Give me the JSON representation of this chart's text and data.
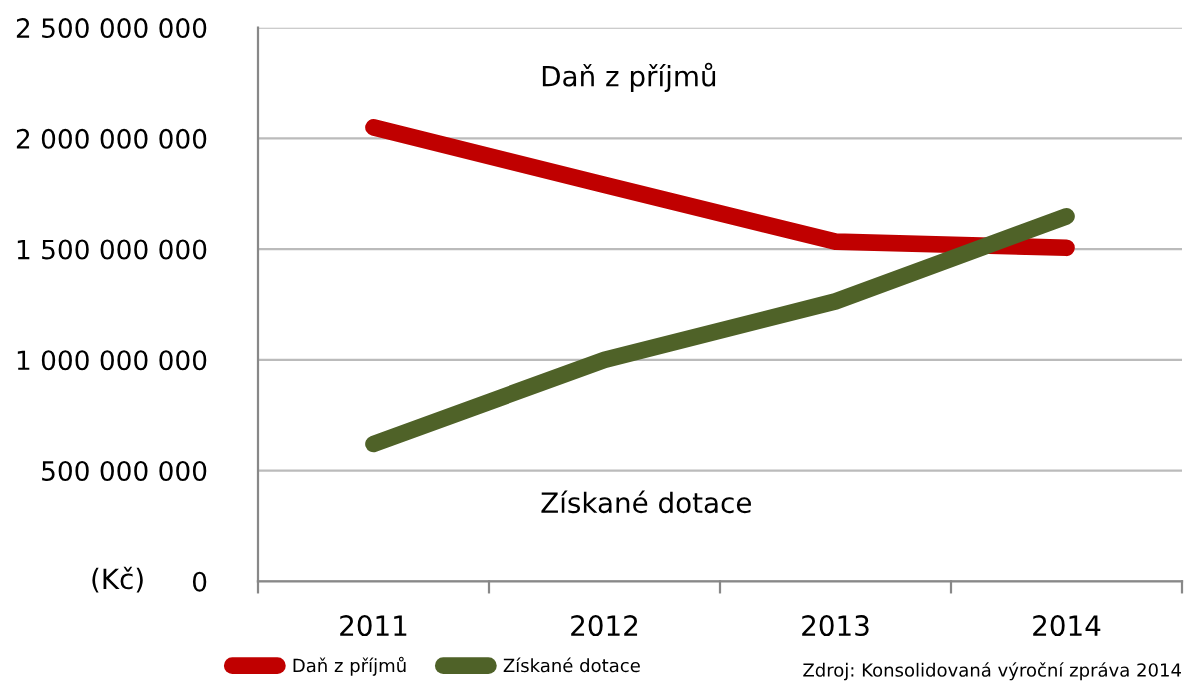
{
  "chart_data": {
    "type": "line",
    "ylabel": "(Kč)",
    "categories": [
      "2011",
      "2012",
      "2013",
      "2014"
    ],
    "series": [
      {
        "name": "Daň z příjmů",
        "color": "#c00000",
        "values": [
          2050000000,
          1790000000,
          1534000000,
          1506000000
        ]
      },
      {
        "name": "Získané dotace",
        "color": "#4f6228",
        "values": [
          620000000,
          1000000000,
          1264000000,
          1648000000
        ]
      }
    ],
    "ylim": [
      0,
      2500000000
    ],
    "yticks": [
      {
        "value": 0,
        "label": "0"
      },
      {
        "value": 500000000,
        "label": "500 000 000"
      },
      {
        "value": 1000000000,
        "label": "1 000 000 000"
      },
      {
        "value": 1500000000,
        "label": "1 500 000 000"
      },
      {
        "value": 2000000000,
        "label": "2 000 000 000"
      },
      {
        "value": 2500000000,
        "label": "2 500 000 000"
      }
    ],
    "grid": "y",
    "legend": "bottom left",
    "marker": "none",
    "line_style": "solid",
    "annotations": [
      "Zdroj: Konsolidovaná výroční zpráva 2014"
    ]
  }
}
